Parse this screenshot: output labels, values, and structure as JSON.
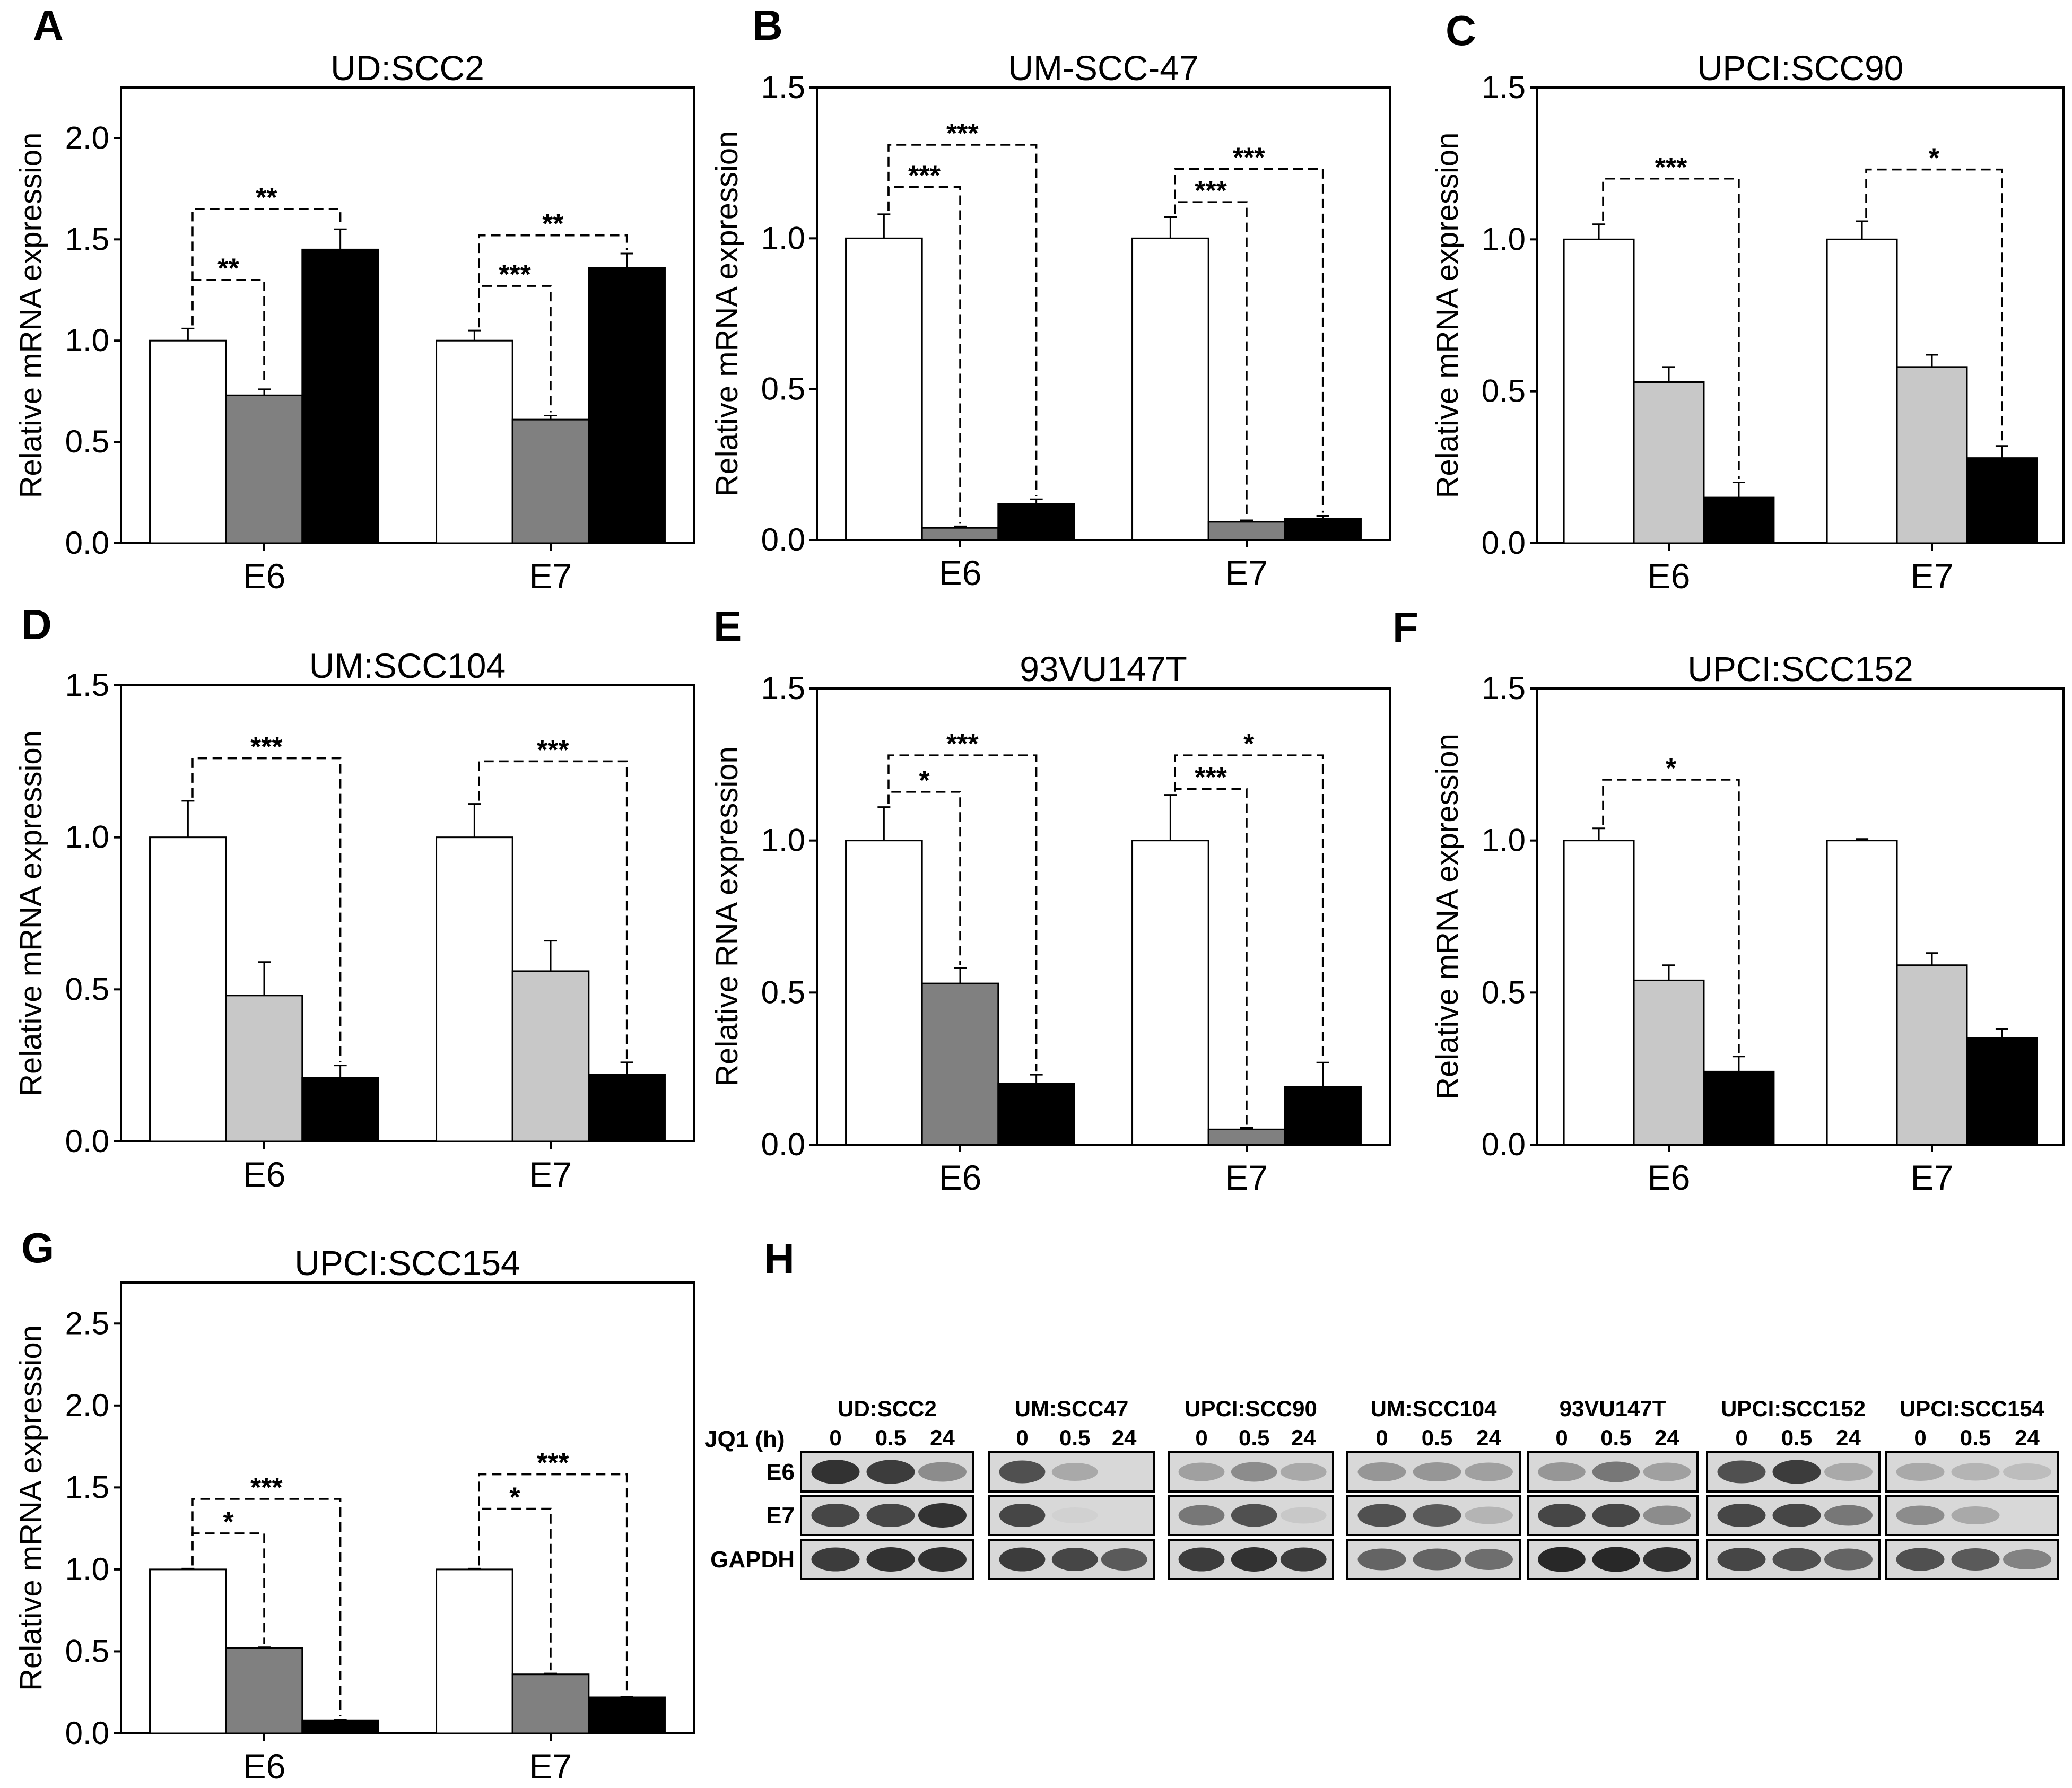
{
  "figure": {
    "colors": {
      "white": "#ffffff",
      "gray_light": "#c8c8c8",
      "gray_dark": "#808080",
      "black": "#000000"
    }
  },
  "chart_data": [
    {
      "id": "A",
      "type": "bar",
      "title": "UD:SCC2",
      "ylabel": "Relative  mRNA expression",
      "ylim": [
        0,
        2.25
      ],
      "yticks": [
        0.0,
        0.5,
        1.0,
        1.5,
        2.0
      ],
      "categories": [
        "E6",
        "E7"
      ],
      "series": [
        {
          "name": "0 h",
          "color": "#ffffff",
          "values": [
            1.0,
            1.0
          ],
          "errors": [
            0.06,
            0.05
          ]
        },
        {
          "name": "0.5 h",
          "color": "#808080",
          "values": [
            0.73,
            0.61
          ],
          "errors": [
            0.03,
            0.02
          ]
        },
        {
          "name": "24 h",
          "color": "#000000",
          "values": [
            1.45,
            1.36
          ],
          "errors": [
            0.1,
            0.07
          ]
        }
      ],
      "annotations": [
        {
          "cat": 0,
          "from": 0,
          "to": 1,
          "label": "**",
          "level": 1.3
        },
        {
          "cat": 0,
          "from": 0,
          "to": 2,
          "label": "**",
          "level": 1.65
        },
        {
          "cat": 1,
          "from": 0,
          "to": 1,
          "label": "***",
          "level": 1.27
        },
        {
          "cat": 1,
          "from": 0,
          "to": 2,
          "label": "**",
          "level": 1.52
        }
      ]
    },
    {
      "id": "B",
      "type": "bar",
      "title": "UM-SCC-47",
      "ylabel": "Relative mRNA expression",
      "ylim": [
        0,
        1.5
      ],
      "yticks": [
        0.0,
        0.5,
        1.0,
        1.5
      ],
      "categories": [
        "E6",
        "E7"
      ],
      "series": [
        {
          "name": "0 h",
          "color": "#ffffff",
          "values": [
            1.0,
            1.0
          ],
          "errors": [
            0.08,
            0.07
          ]
        },
        {
          "name": "0.5 h",
          "color": "#808080",
          "values": [
            0.04,
            0.06
          ],
          "errors": [
            0.005,
            0.005
          ]
        },
        {
          "name": "24 h",
          "color": "#000000",
          "values": [
            0.12,
            0.07
          ],
          "errors": [
            0.015,
            0.01
          ]
        }
      ],
      "annotations": [
        {
          "cat": 0,
          "from": 0,
          "to": 1,
          "label": "***",
          "level": 1.17
        },
        {
          "cat": 0,
          "from": 0,
          "to": 2,
          "label": "***",
          "level": 1.31
        },
        {
          "cat": 1,
          "from": 0,
          "to": 1,
          "label": "***",
          "level": 1.12
        },
        {
          "cat": 1,
          "from": 0,
          "to": 2,
          "label": "***",
          "level": 1.23
        }
      ]
    },
    {
      "id": "C",
      "type": "bar",
      "title": "UPCI:SCC90",
      "ylabel": "Relative mRNA expression",
      "ylim": [
        0,
        1.5
      ],
      "yticks": [
        0.0,
        0.5,
        1.0,
        1.5
      ],
      "categories": [
        "E6",
        "E7"
      ],
      "series": [
        {
          "name": "0 h",
          "color": "#ffffff",
          "values": [
            1.0,
            1.0
          ],
          "errors": [
            0.05,
            0.06
          ]
        },
        {
          "name": "0.5 h",
          "color": "#c8c8c8",
          "values": [
            0.53,
            0.58
          ],
          "errors": [
            0.05,
            0.04
          ]
        },
        {
          "name": "24 h",
          "color": "#000000",
          "values": [
            0.15,
            0.28
          ],
          "errors": [
            0.05,
            0.04
          ]
        }
      ],
      "annotations": [
        {
          "cat": 0,
          "from": 0,
          "to": 2,
          "label": "***",
          "level": 1.2
        },
        {
          "cat": 1,
          "from": 0,
          "to": 2,
          "label": "*",
          "level": 1.23
        }
      ]
    },
    {
      "id": "D",
      "type": "bar",
      "title": "UM:SCC104",
      "ylabel": "Relative mRNA expression",
      "ylim": [
        0,
        1.5
      ],
      "yticks": [
        0.0,
        0.5,
        1.0,
        1.5
      ],
      "categories": [
        "E6",
        "E7"
      ],
      "series": [
        {
          "name": "0 h",
          "color": "#ffffff",
          "values": [
            1.0,
            1.0
          ],
          "errors": [
            0.12,
            0.11
          ]
        },
        {
          "name": "0.5 h",
          "color": "#c8c8c8",
          "values": [
            0.48,
            0.56
          ],
          "errors": [
            0.11,
            0.1
          ]
        },
        {
          "name": "24 h",
          "color": "#000000",
          "values": [
            0.21,
            0.22
          ],
          "errors": [
            0.04,
            0.04
          ]
        }
      ],
      "annotations": [
        {
          "cat": 0,
          "from": 0,
          "to": 2,
          "label": "***",
          "level": 1.26
        },
        {
          "cat": 1,
          "from": 0,
          "to": 2,
          "label": "***",
          "level": 1.25
        }
      ]
    },
    {
      "id": "E",
      "type": "bar",
      "title": "93VU147T",
      "ylabel": "Relative RNA expression",
      "ylim": [
        0,
        1.5
      ],
      "yticks": [
        0.0,
        0.5,
        1.0,
        1.5
      ],
      "categories": [
        "E6",
        "E7"
      ],
      "series": [
        {
          "name": "0 h",
          "color": "#ffffff",
          "values": [
            1.0,
            1.0
          ],
          "errors": [
            0.11,
            0.15
          ]
        },
        {
          "name": "0.5 h",
          "color": "#808080",
          "values": [
            0.53,
            0.05
          ],
          "errors": [
            0.05,
            0.005
          ]
        },
        {
          "name": "24 h",
          "color": "#000000",
          "values": [
            0.2,
            0.19
          ],
          "errors": [
            0.03,
            0.08
          ]
        }
      ],
      "annotations": [
        {
          "cat": 0,
          "from": 0,
          "to": 1,
          "label": "*",
          "level": 1.16
        },
        {
          "cat": 0,
          "from": 0,
          "to": 2,
          "label": "***",
          "level": 1.28
        },
        {
          "cat": 1,
          "from": 0,
          "to": 1,
          "label": "***",
          "level": 1.17
        },
        {
          "cat": 1,
          "from": 0,
          "to": 2,
          "label": "*",
          "level": 1.28
        }
      ]
    },
    {
      "id": "F",
      "type": "bar",
      "title": "UPCI:SCC152",
      "ylabel": "Relative mRNA expression",
      "ylim": [
        0,
        1.5
      ],
      "yticks": [
        0.0,
        0.5,
        1.0,
        1.5
      ],
      "categories": [
        "E6",
        "E7"
      ],
      "series": [
        {
          "name": "0 h",
          "color": "#ffffff",
          "values": [
            1.0,
            1.0
          ],
          "errors": [
            0.04,
            0.005
          ]
        },
        {
          "name": "0.5 h",
          "color": "#c8c8c8",
          "values": [
            0.54,
            0.59
          ],
          "errors": [
            0.05,
            0.04
          ]
        },
        {
          "name": "24 h",
          "color": "#000000",
          "values": [
            0.24,
            0.35
          ],
          "errors": [
            0.05,
            0.03
          ]
        }
      ],
      "annotations": [
        {
          "cat": 0,
          "from": 0,
          "to": 2,
          "label": "*",
          "level": 1.2
        }
      ]
    },
    {
      "id": "G",
      "type": "bar",
      "title": "UPCI:SCC154",
      "ylabel": "Relative mRNA expression",
      "ylim": [
        0,
        2.75
      ],
      "yticks": [
        0.0,
        0.5,
        1.0,
        1.5,
        2.0,
        2.5
      ],
      "categories": [
        "E6",
        "E7"
      ],
      "series": [
        {
          "name": "0 h",
          "color": "#ffffff",
          "values": [
            1.0,
            1.0
          ],
          "errors": [
            0.005,
            0.005
          ]
        },
        {
          "name": "0.5 h",
          "color": "#808080",
          "values": [
            0.52,
            0.36
          ],
          "errors": [
            0.005,
            0.005
          ]
        },
        {
          "name": "24 h",
          "color": "#000000",
          "values": [
            0.08,
            0.22
          ],
          "errors": [
            0.005,
            0.005
          ]
        }
      ],
      "annotations": [
        {
          "cat": 0,
          "from": 0,
          "to": 1,
          "label": "*",
          "level": 1.22
        },
        {
          "cat": 0,
          "from": 0,
          "to": 2,
          "label": "***",
          "level": 1.43
        },
        {
          "cat": 1,
          "from": 0,
          "to": 1,
          "label": "*",
          "level": 1.37
        },
        {
          "cat": 1,
          "from": 0,
          "to": 2,
          "label": "***",
          "level": 1.58
        }
      ]
    }
  ],
  "blot": {
    "letter": "H",
    "treatment_label": "JQ1 (h)",
    "timepoints": [
      "0",
      "0.5",
      "24"
    ],
    "rows": [
      "E6",
      "E7",
      "GAPDH"
    ],
    "cell_lines": [
      {
        "name": "UD:SCC2",
        "bands": [
          [
            0.9,
            0.85,
            0.45
          ],
          [
            0.8,
            0.8,
            0.9
          ],
          [
            0.85,
            0.9,
            0.9
          ]
        ]
      },
      {
        "name": "UM:SCC47",
        "bands": [
          [
            0.75,
            0.3,
            0.0
          ],
          [
            0.8,
            0.1,
            0.0
          ],
          [
            0.85,
            0.8,
            0.7
          ]
        ]
      },
      {
        "name": "UPCI:SCC90",
        "bands": [
          [
            0.35,
            0.45,
            0.3
          ],
          [
            0.55,
            0.75,
            0.15
          ],
          [
            0.85,
            0.9,
            0.85
          ]
        ]
      },
      {
        "name": "UM:SCC104",
        "bands": [
          [
            0.4,
            0.4,
            0.35
          ],
          [
            0.75,
            0.7,
            0.25
          ],
          [
            0.65,
            0.65,
            0.6
          ]
        ]
      },
      {
        "name": "93VU147T",
        "bands": [
          [
            0.4,
            0.55,
            0.35
          ],
          [
            0.8,
            0.8,
            0.45
          ],
          [
            0.95,
            0.95,
            0.9
          ]
        ]
      },
      {
        "name": "UPCI:SCC152",
        "bands": [
          [
            0.75,
            0.85,
            0.3
          ],
          [
            0.8,
            0.8,
            0.55
          ],
          [
            0.8,
            0.75,
            0.65
          ]
        ]
      },
      {
        "name": "UPCI:SCC154",
        "bands": [
          [
            0.3,
            0.25,
            0.2
          ],
          [
            0.45,
            0.3,
            0.0
          ],
          [
            0.75,
            0.7,
            0.5
          ]
        ]
      }
    ]
  }
}
